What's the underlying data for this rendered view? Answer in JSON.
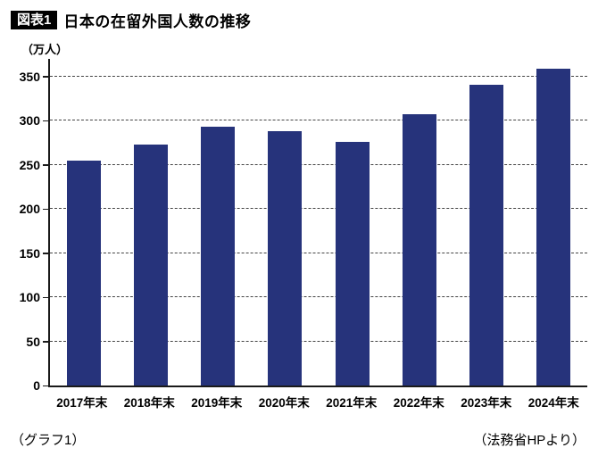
{
  "header": {
    "badge": "図表1",
    "title": "日本の在留外国人数の推移"
  },
  "footer": {
    "left": "（グラフ1）",
    "right": "（法務省HPより）"
  },
  "chart_data": {
    "type": "bar",
    "title": "日本の在留外国人数の推移",
    "unit_label": "（万人）",
    "categories": [
      "2017年末",
      "2018年末",
      "2019年末",
      "2020年末",
      "2021年末",
      "2022年末",
      "2023年末",
      "2024年末"
    ],
    "values": [
      255,
      273,
      293,
      288,
      276,
      307,
      341,
      359
    ],
    "ylabel": "万人",
    "xlabel": "",
    "ylim": [
      0,
      370
    ],
    "yticks": [
      0,
      50,
      100,
      150,
      200,
      250,
      300,
      350
    ],
    "grid": "dashed-horizontal",
    "legend": "none",
    "bar_color": "#26337b",
    "axis_color": "#1a1a1a"
  }
}
